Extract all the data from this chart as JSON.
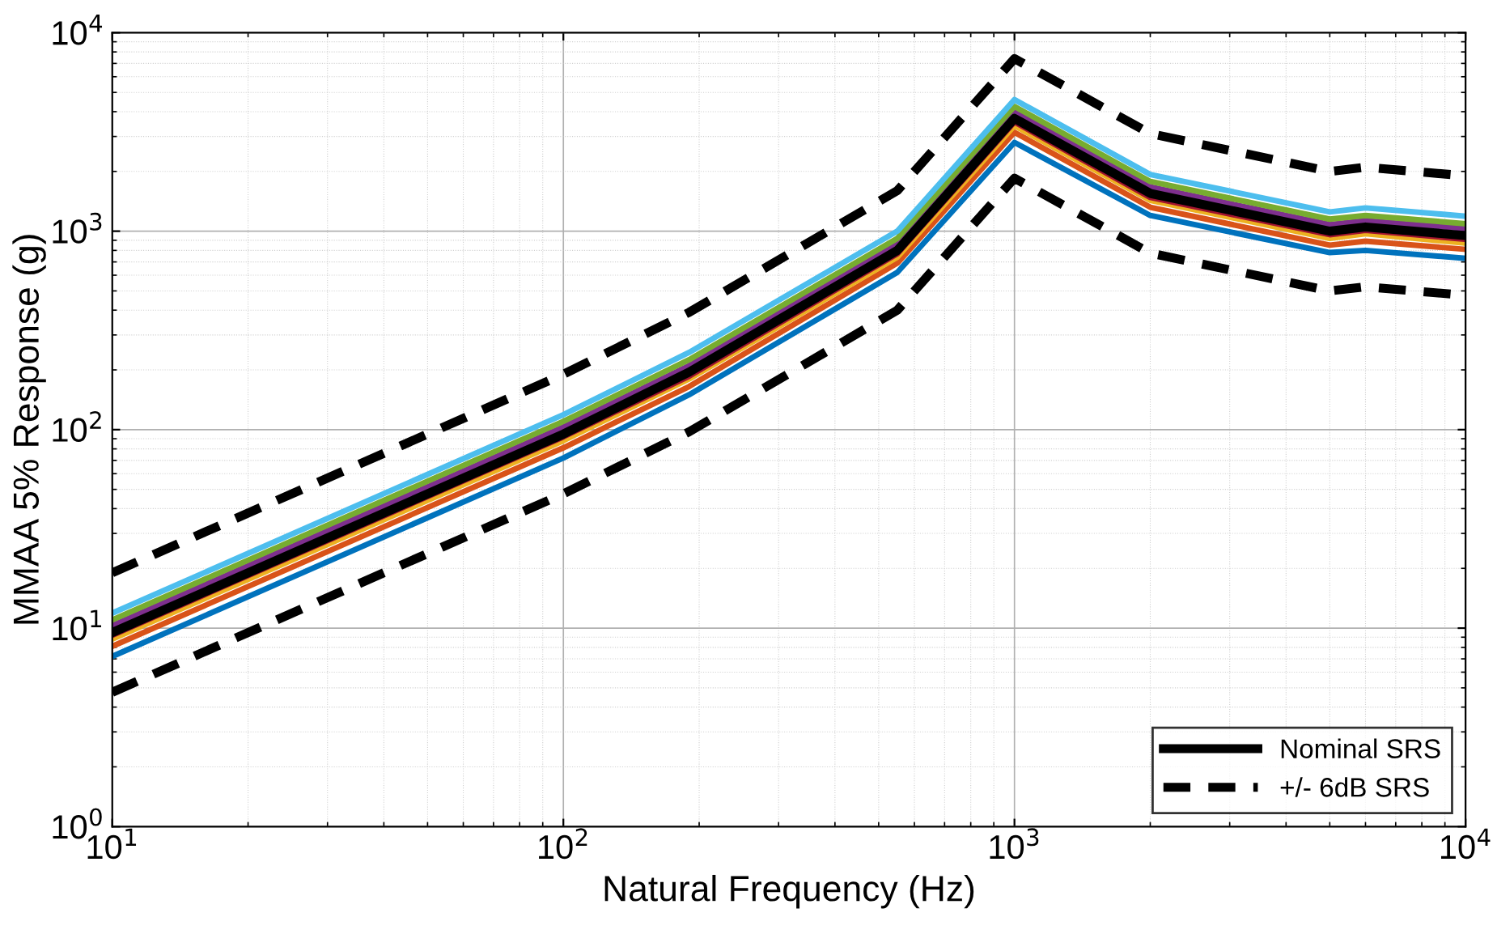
{
  "chart_data": {
    "type": "line",
    "xlabel": "Natural Frequency (Hz)",
    "ylabel": "MMAA 5% Response (g)",
    "log": "xy",
    "grid": true,
    "legend": "bottom right",
    "x": [
      10,
      100,
      190,
      550,
      1000,
      2000,
      5000,
      6000,
      10000
    ],
    "xlim": [
      10,
      10000
    ],
    "ylim": [
      1,
      10000
    ],
    "xticks": [
      {
        "value": 10,
        "label": "10$^{1}$"
      },
      {
        "value": 100,
        "label": "10$^{2}$"
      },
      {
        "value": 1000,
        "label": "10$^{3}$"
      },
      {
        "value": 10000,
        "label": "10$^{4}$"
      }
    ],
    "yticks": [
      {
        "value": 1,
        "label": "10$^{0}$"
      },
      {
        "value": 10,
        "label": "10$^{1}$"
      },
      {
        "value": 100,
        "label": "10$^{2}$"
      },
      {
        "value": 1000,
        "label": "10$^{3}$"
      },
      {
        "value": 10000,
        "label": "10$^{4}$"
      }
    ],
    "series": [
      {
        "color": "#0072bd",
        "values": [
          7.2,
          72,
          150,
          620,
          2800,
          1200,
          780,
          800,
          730
        ]
      },
      {
        "color": "#d95319",
        "values": [
          8.1,
          81,
          165,
          690,
          3150,
          1320,
          850,
          890,
          810
        ]
      },
      {
        "color": "#edb120",
        "values": [
          8.8,
          88,
          180,
          740,
          3400,
          1430,
          920,
          970,
          870
        ]
      },
      {
        "color": "#7e2f8e",
        "values": [
          10.3,
          103,
          210,
          860,
          4000,
          1670,
          1080,
          1130,
          1030
        ]
      },
      {
        "color": "#77ac30",
        "values": [
          11,
          110,
          225,
          920,
          4250,
          1780,
          1150,
          1200,
          1090
        ]
      },
      {
        "color": "#4dbeee",
        "values": [
          11.9,
          119,
          245,
          1000,
          4600,
          1930,
          1250,
          1310,
          1190
        ]
      },
      {
        "color": "#a2142f",
        "values": [
          9.2,
          92,
          186,
          770,
          3550,
          1480,
          960,
          1010,
          910
        ]
      },
      {
        "name": "Nominal SRS",
        "color": "#000000",
        "line_style": "solid",
        "values": [
          9.5,
          95,
          195,
          800,
          3700,
          1550,
          1000,
          1050,
          950
        ]
      },
      {
        "name": "+/- 6dB SRS",
        "color": "#000000",
        "line_style": "dashed",
        "values": [
          19,
          190,
          390,
          1600,
          7400,
          3100,
          2000,
          2100,
          1900
        ]
      },
      {
        "color": "#000000",
        "line_style": "dashed",
        "values": [
          4.75,
          47.5,
          97.5,
          400,
          1850,
          775,
          500,
          525,
          475
        ]
      }
    ]
  }
}
